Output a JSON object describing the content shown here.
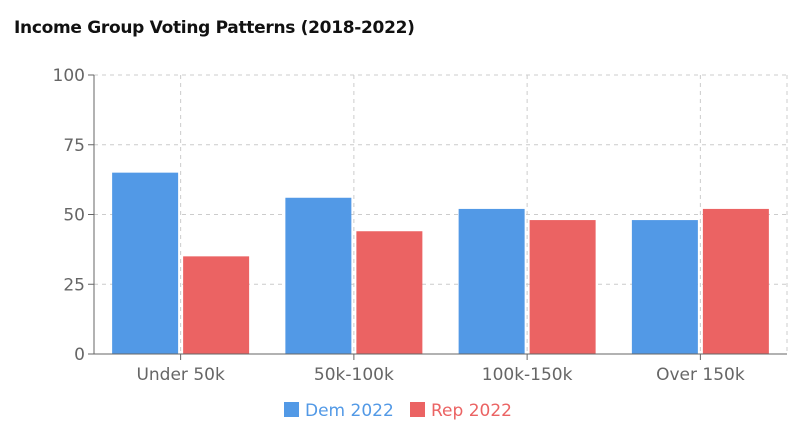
{
  "chart_data": {
    "type": "bar",
    "title": "Income Group Voting Patterns (2018-2022)",
    "categories": [
      "Under 50k",
      "50k-100k",
      "100k-150k",
      "Over 150k"
    ],
    "series": [
      {
        "name": "Dem 2022",
        "values": [
          65,
          56,
          52,
          48
        ],
        "color": "#5299e6"
      },
      {
        "name": "Rep 2022",
        "values": [
          35,
          44,
          48,
          52
        ],
        "color": "#eb6363"
      }
    ],
    "ylim": [
      0,
      100
    ],
    "yticks": [
      0,
      25,
      50,
      75,
      100
    ],
    "xlabel": "",
    "ylabel": "",
    "grid": true,
    "legend_position": "bottom"
  }
}
